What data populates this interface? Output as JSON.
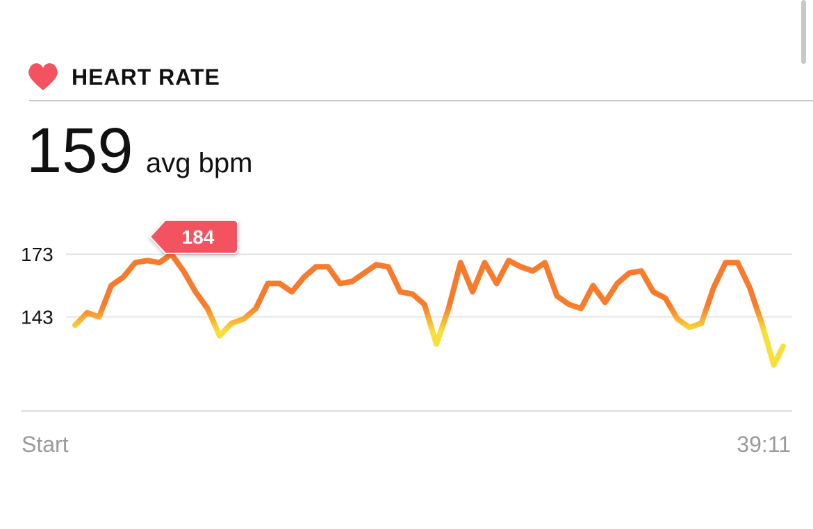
{
  "header": {
    "title": "HEART RATE"
  },
  "summary": {
    "value": "159",
    "unit": "avg bpm"
  },
  "chart_data": {
    "type": "line",
    "annotation": "184",
    "colors": [
      "#f77b2d",
      "#f8e03b"
    ],
    "xlim": [
      0,
      2351
    ],
    "xticks": [
      {
        "value": 0,
        "label": "Start"
      },
      {
        "value": 2351,
        "label": "39:11"
      }
    ],
    "ylim": [
      98,
      195
    ],
    "yticks": [
      143,
      173
    ],
    "grid": true,
    "x": [
      0,
      40,
      80,
      120,
      160,
      200,
      240,
      280,
      320,
      360,
      400,
      440,
      480,
      520,
      560,
      600,
      640,
      680,
      720,
      760,
      800,
      840,
      880,
      920,
      960,
      1000,
      1040,
      1080,
      1120,
      1160,
      1200,
      1240,
      1280,
      1320,
      1360,
      1400,
      1440,
      1480,
      1520,
      1560,
      1600,
      1640,
      1680,
      1720,
      1760,
      1800,
      1840,
      1880,
      1920,
      1960,
      2000,
      2040,
      2080,
      2120,
      2160,
      2200,
      2240,
      2280,
      2320,
      2351
    ],
    "values": [
      139,
      145,
      143,
      158,
      162,
      169,
      170,
      169,
      173,
      165,
      155,
      147,
      134,
      140,
      142,
      147,
      159,
      159,
      155,
      162,
      167,
      167,
      159,
      160,
      164,
      168,
      167,
      155,
      154,
      149,
      130,
      147,
      169,
      155,
      169,
      159,
      170,
      167,
      165,
      169,
      153,
      149,
      147,
      158,
      150,
      159,
      164,
      165,
      155,
      152,
      142,
      138,
      140,
      157,
      169,
      169,
      157,
      140,
      120,
      129
    ]
  }
}
